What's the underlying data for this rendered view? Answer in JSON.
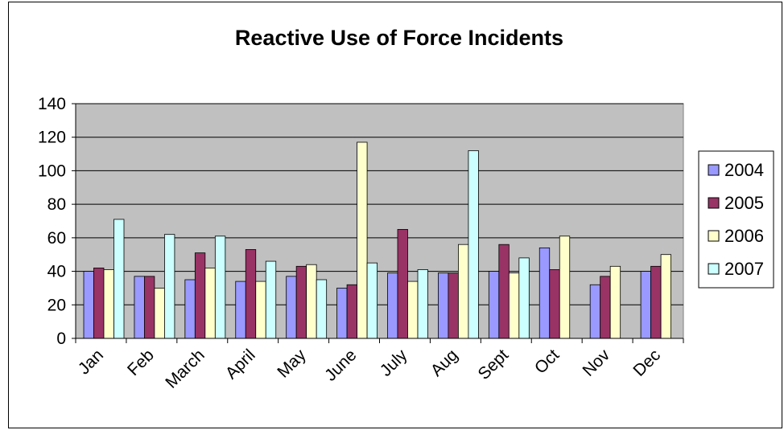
{
  "chart_data": {
    "type": "bar",
    "title": "Reactive Use of Force Incidents",
    "xlabel": "",
    "ylabel": "",
    "ylim": [
      0,
      140
    ],
    "yticks": [
      "0",
      "20",
      "40",
      "60",
      "80",
      "100",
      "120",
      "140"
    ],
    "grid": true,
    "legend_position": "right",
    "categories": [
      "Jan",
      "Feb",
      "March",
      "April",
      "May",
      "June",
      "July",
      "Aug",
      "Sept",
      "Oct",
      "Nov",
      "Dec"
    ],
    "series": [
      {
        "name": "2004",
        "color": "#9999ff",
        "values": [
          40,
          37,
          35,
          34,
          37,
          30,
          39,
          39,
          40,
          54,
          32,
          40
        ]
      },
      {
        "name": "2005",
        "color": "#993366",
        "values": [
          42,
          37,
          51,
          53,
          43,
          32,
          65,
          39,
          56,
          41,
          37,
          43
        ]
      },
      {
        "name": "2006",
        "color": "#ffffcc",
        "values": [
          41,
          30,
          42,
          34,
          44,
          117,
          34,
          56,
          39,
          61,
          43,
          50
        ]
      },
      {
        "name": "2007",
        "color": "#ccffff",
        "values": [
          71,
          62,
          61,
          46,
          35,
          45,
          41,
          112,
          48,
          null,
          null,
          null
        ]
      }
    ],
    "plot_background": "#c0c0c0"
  }
}
